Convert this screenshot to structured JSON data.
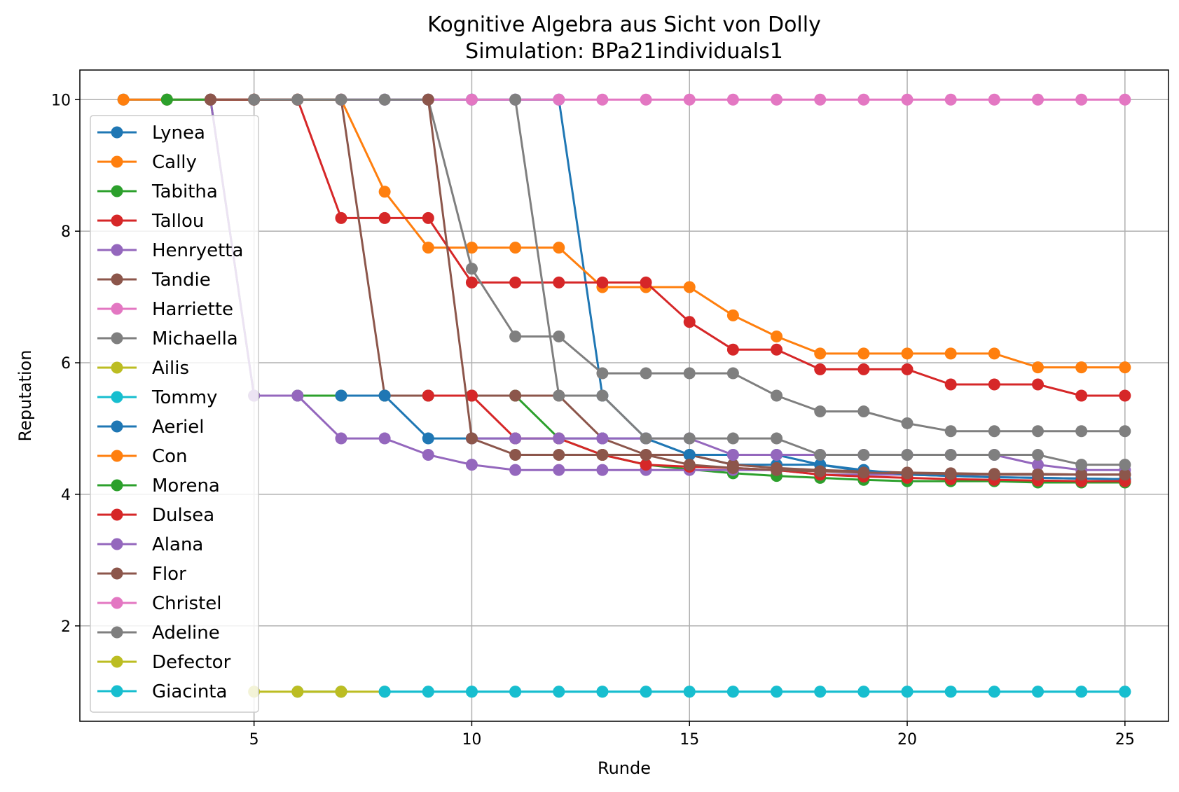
{
  "chart_data": {
    "type": "line",
    "title": "Kognitive Algebra aus Sicht von Dolly",
    "subtitle": "Simulation: BPa21individuals1",
    "xlabel": "Runde",
    "ylabel": "Reputation",
    "xlim": [
      1,
      26
    ],
    "ylim": [
      0.55,
      10.45
    ],
    "xticks": [
      5,
      10,
      15,
      20,
      25
    ],
    "yticks": [
      2,
      4,
      6,
      8,
      10
    ],
    "grid": true,
    "legend_position": "upper-left",
    "series": [
      {
        "name": "Lynea",
        "color": "#1f77b4",
        "x": [
          2,
          3,
          4,
          5,
          6,
          7,
          8,
          9,
          10,
          11,
          12,
          13,
          14,
          15,
          16,
          17,
          18,
          19,
          20,
          21,
          22,
          23,
          24,
          25
        ],
        "y": [
          10,
          10,
          10,
          10,
          10,
          10,
          10,
          10,
          10,
          10,
          10,
          5.5,
          4.85,
          4.6,
          4.45,
          4.45,
          4.45,
          4.35,
          4.3,
          4.28,
          4.26,
          4.25,
          4.24,
          4.23
        ]
      },
      {
        "name": "Cally",
        "color": "#ff7f0e",
        "x": [
          2,
          3,
          4,
          5,
          6,
          7,
          8,
          9,
          10,
          11,
          12,
          13,
          14,
          15,
          16,
          17,
          18,
          19,
          20,
          21,
          22,
          23,
          24,
          25
        ],
        "y": [
          10,
          10,
          10,
          10,
          10,
          10,
          8.6,
          7.75,
          7.75,
          7.75,
          7.75,
          7.15,
          7.15,
          7.15,
          6.72,
          6.4,
          6.14,
          6.14,
          6.14,
          6.14,
          6.14,
          5.93,
          5.93,
          5.93
        ]
      },
      {
        "name": "Tabitha",
        "color": "#2ca02c",
        "x": [
          3,
          4,
          5,
          6,
          7,
          8,
          9,
          10,
          11,
          12,
          13,
          14,
          15,
          16,
          17,
          18,
          19,
          20,
          21,
          22,
          23,
          24,
          25
        ],
        "y": [
          10,
          10,
          5.5,
          5.5,
          5.5,
          5.5,
          5.5,
          5.5,
          5.5,
          4.85,
          4.6,
          4.45,
          4.38,
          4.32,
          4.28,
          4.25,
          4.22,
          4.2,
          4.2,
          4.2,
          4.18,
          4.18,
          4.18
        ]
      },
      {
        "name": "Tallou",
        "color": "#d62728",
        "x": [
          4,
          5,
          6,
          7,
          8,
          9,
          10,
          11,
          12,
          13,
          14,
          15,
          16,
          17,
          18,
          19,
          20,
          21,
          22,
          23,
          24,
          25
        ],
        "y": [
          10,
          10,
          10,
          8.2,
          8.2,
          8.2,
          7.22,
          7.22,
          7.22,
          7.22,
          7.22,
          6.62,
          6.2,
          6.2,
          5.9,
          5.9,
          5.9,
          5.67,
          5.67,
          5.67,
          5.5,
          5.5
        ]
      },
      {
        "name": "Henryetta",
        "color": "#9467bd",
        "x": [
          4,
          5,
          6,
          7,
          8,
          9,
          10,
          11,
          12,
          13,
          14,
          15,
          16,
          17,
          18,
          19,
          20,
          21,
          22,
          23,
          24,
          25
        ],
        "y": [
          10,
          5.5,
          5.5,
          4.85,
          4.85,
          4.6,
          4.45,
          4.37,
          4.37,
          4.37,
          4.37,
          4.37,
          4.37,
          4.37,
          4.3,
          4.3,
          4.3,
          4.3,
          4.3,
          4.3,
          4.3,
          4.3
        ]
      },
      {
        "name": "Tandie",
        "color": "#8c564b",
        "x": [
          4,
          5,
          6,
          7,
          8,
          9,
          10,
          11,
          12,
          13,
          14,
          15,
          16,
          17,
          18,
          19,
          20,
          21,
          22,
          23,
          24,
          25
        ],
        "y": [
          10,
          10,
          10,
          10,
          5.5,
          5.5,
          5.5,
          5.5,
          5.5,
          4.85,
          4.6,
          4.6,
          4.45,
          4.4,
          4.37,
          4.35,
          4.33,
          4.32,
          4.31,
          4.31,
          4.3,
          4.3
        ]
      },
      {
        "name": "Harriette",
        "color": "#e377c2",
        "x": [
          7,
          8,
          9,
          10,
          11,
          12,
          13,
          14,
          15,
          16,
          17,
          18,
          19,
          20,
          21,
          22,
          23,
          24,
          25
        ],
        "y": [
          10,
          10,
          10,
          10,
          10,
          10,
          10,
          10,
          10,
          10,
          10,
          10,
          10,
          10,
          10,
          10,
          10,
          10,
          10
        ]
      },
      {
        "name": "Michaella",
        "color": "#7f7f7f",
        "x": [
          5,
          6,
          7,
          8,
          9,
          10,
          11,
          12,
          13,
          14,
          15,
          16,
          17,
          18,
          19,
          20,
          21,
          22,
          23,
          24,
          25
        ],
        "y": [
          10,
          10,
          10,
          10,
          10,
          7.43,
          6.4,
          6.4,
          5.84,
          5.84,
          5.84,
          5.84,
          5.5,
          5.26,
          5.26,
          5.08,
          4.96,
          4.96,
          4.96,
          4.96,
          4.96
        ]
      },
      {
        "name": "Ailis",
        "color": "#bcbd22",
        "x": [
          7,
          8
        ],
        "y": [
          1,
          1
        ]
      },
      {
        "name": "Tommy",
        "color": "#17becf",
        "x": [
          8,
          9,
          10,
          11,
          12,
          13,
          14,
          15,
          16,
          17,
          18,
          19,
          20,
          21,
          22,
          23,
          24,
          25
        ],
        "y": [
          1,
          1,
          1,
          1,
          1,
          1,
          1,
          1,
          1,
          1,
          1,
          1,
          1,
          1,
          1,
          1,
          1,
          1
        ]
      },
      {
        "name": "Aeriel",
        "color": "#1f77b4",
        "x": [
          7,
          8,
          9,
          10,
          11,
          12,
          13,
          14,
          15,
          16,
          17,
          18,
          19,
          20,
          21,
          22,
          23,
          24,
          25
        ],
        "y": [
          5.5,
          5.5,
          4.85,
          4.85,
          4.85,
          4.85,
          4.85,
          4.85,
          4.6,
          4.6,
          4.6,
          4.45,
          4.37,
          4.3,
          4.28,
          4.26,
          4.25,
          4.24,
          4.23
        ]
      },
      {
        "name": "Con",
        "color": "#ff7f0e",
        "x": [],
        "y": []
      },
      {
        "name": "Morena",
        "color": "#2ca02c",
        "x": [
          6,
          7
        ],
        "y": [
          1,
          1
        ]
      },
      {
        "name": "Dulsea",
        "color": "#d62728",
        "x": [
          9,
          10,
          11,
          12,
          13,
          14,
          15,
          16,
          17,
          18,
          19,
          20,
          21,
          22,
          23,
          24,
          25
        ],
        "y": [
          5.5,
          5.5,
          4.85,
          4.85,
          4.6,
          4.45,
          4.42,
          4.4,
          4.37,
          4.3,
          4.27,
          4.25,
          4.23,
          4.22,
          4.21,
          4.2,
          4.2
        ]
      },
      {
        "name": "Alana",
        "color": "#9467bd",
        "x": [
          10,
          11,
          12,
          13,
          14,
          15,
          16,
          17,
          18,
          19,
          20,
          21,
          22,
          23,
          24,
          25
        ],
        "y": [
          4.85,
          4.85,
          4.85,
          4.85,
          4.85,
          4.85,
          4.6,
          4.6,
          4.6,
          4.6,
          4.6,
          4.6,
          4.6,
          4.45,
          4.37,
          4.37
        ]
      },
      {
        "name": "Flor",
        "color": "#8c564b",
        "x": [
          9,
          10,
          11,
          12,
          13,
          14,
          15,
          16,
          17,
          18,
          19,
          20,
          21,
          22,
          23,
          24,
          25
        ],
        "y": [
          10,
          4.85,
          4.6,
          4.6,
          4.6,
          4.6,
          4.45,
          4.4,
          4.37,
          4.35,
          4.33,
          4.32,
          4.31,
          4.3,
          4.3,
          4.3,
          4.3
        ]
      },
      {
        "name": "Christel",
        "color": "#e377c2",
        "x": [],
        "y": []
      },
      {
        "name": "Adeline",
        "color": "#7f7f7f",
        "x": [
          11,
          12,
          13,
          14,
          15,
          16,
          17,
          18,
          19,
          20,
          21,
          22,
          23,
          24,
          25
        ],
        "y": [
          10,
          5.5,
          5.5,
          4.85,
          4.85,
          4.85,
          4.85,
          4.6,
          4.6,
          4.6,
          4.6,
          4.6,
          4.6,
          4.45,
          4.45
        ]
      },
      {
        "name": "Defector",
        "color": "#bcbd22",
        "x": [
          5,
          6,
          7
        ],
        "y": [
          1,
          1,
          1
        ]
      },
      {
        "name": "Giacinta",
        "color": "#17becf",
        "x": [
          8,
          9,
          10,
          11,
          12,
          13,
          14,
          15,
          16,
          17,
          18,
          19,
          20,
          21,
          22,
          23,
          24,
          25
        ],
        "y": [
          1,
          1,
          1,
          1,
          1,
          1,
          1,
          1,
          1,
          1,
          1,
          1,
          1,
          1,
          1,
          1,
          1,
          1
        ]
      }
    ]
  }
}
